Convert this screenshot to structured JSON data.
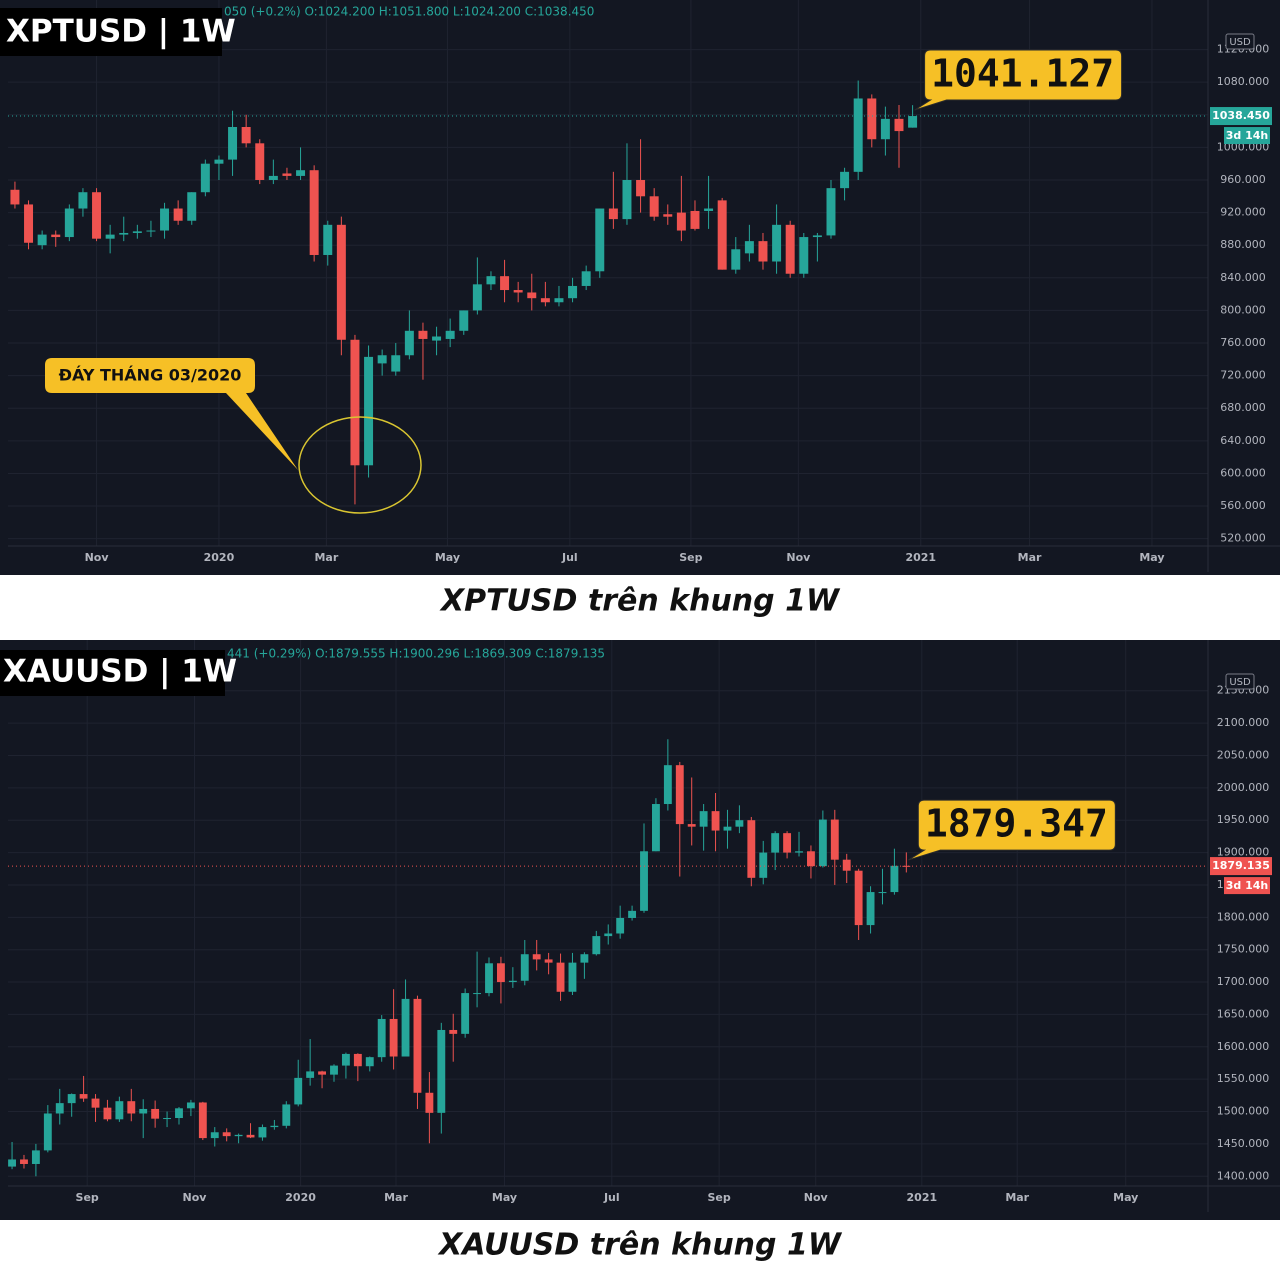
{
  "chart_data": [
    {
      "type": "candlestick",
      "title": "XPTUSD | 1W",
      "header": "050 (+0.2%) O:1024.200 H:1051.800 L:1024.200 C:1038.450",
      "caption": "XPTUSD trên khung 1W",
      "callout": "1041.127",
      "last_price_label": "1038.450",
      "countdown": "3d 14h",
      "annotation": "ĐÁY THÁNG 03/2020",
      "y_unit": "USD",
      "up_color": "#26a69a",
      "down_color": "#ef5350",
      "xlim": [
        -0.51,
        87.72
      ],
      "ylim": [
        511,
        1144
      ],
      "xticks": [
        {
          "value": 6,
          "label": "Nov"
        },
        {
          "value": 15,
          "label": "2020"
        },
        {
          "value": 22.9,
          "label": "Mar"
        },
        {
          "value": 31.8,
          "label": "May"
        },
        {
          "value": 40.8,
          "label": "Jul"
        },
        {
          "value": 49.7,
          "label": "Sep"
        },
        {
          "value": 57.6,
          "label": "Nov"
        },
        {
          "value": 66.6,
          "label": "2021"
        },
        {
          "value": 74.6,
          "label": "Mar"
        },
        {
          "value": 83.6,
          "label": "May"
        }
      ],
      "yticks": [
        {
          "value": 520,
          "label": "520.000"
        },
        {
          "value": 560,
          "label": "560.000"
        },
        {
          "value": 600,
          "label": "600.000"
        },
        {
          "value": 640,
          "label": "640.000"
        },
        {
          "value": 680,
          "label": "680.000"
        },
        {
          "value": 720,
          "label": "720.000"
        },
        {
          "value": 760,
          "label": "760.000"
        },
        {
          "value": 800,
          "label": "800.000"
        },
        {
          "value": 840,
          "label": "840.000"
        },
        {
          "value": 880,
          "label": "880.000"
        },
        {
          "value": 920,
          "label": "920.000"
        },
        {
          "value": 960,
          "label": "960.000"
        },
        {
          "value": 1000,
          "label": "1000.000"
        },
        {
          "value": 1040,
          "label": "1040.000"
        },
        {
          "value": 1080,
          "label": "1080.000"
        },
        {
          "value": 1120,
          "label": "1120.000"
        }
      ],
      "ohlc": [
        [
          948,
          958,
          925,
          930
        ],
        [
          930,
          935,
          875,
          883
        ],
        [
          880,
          898,
          875,
          893
        ],
        [
          893,
          898,
          878,
          890
        ],
        [
          890,
          930,
          885,
          925
        ],
        [
          925,
          950,
          915,
          945
        ],
        [
          945,
          950,
          885,
          888
        ],
        [
          888,
          905,
          870,
          893
        ],
        [
          893,
          915,
          885,
          895
        ],
        [
          895,
          905,
          888,
          897
        ],
        [
          897,
          910,
          890,
          898
        ],
        [
          898,
          932,
          888,
          925
        ],
        [
          925,
          935,
          905,
          910
        ],
        [
          910,
          945,
          905,
          945
        ],
        [
          945,
          985,
          940,
          980
        ],
        [
          980,
          990,
          960,
          985
        ],
        [
          985,
          1045,
          965,
          1025
        ],
        [
          1025,
          1040,
          1000,
          1005
        ],
        [
          1005,
          1010,
          955,
          960
        ],
        [
          960,
          985,
          955,
          965
        ],
        [
          968,
          975,
          960,
          965
        ],
        [
          965,
          1000,
          960,
          972
        ],
        [
          972,
          978,
          860,
          868
        ],
        [
          868,
          910,
          855,
          905
        ],
        [
          905,
          915,
          745,
          764
        ],
        [
          764,
          770,
          562,
          610
        ],
        [
          610,
          757,
          595,
          743
        ],
        [
          735,
          752,
          720,
          745
        ],
        [
          725,
          760,
          720,
          745
        ],
        [
          745,
          800,
          740,
          775
        ],
        [
          775,
          785,
          715,
          765
        ],
        [
          763,
          780,
          745,
          768
        ],
        [
          765,
          790,
          755,
          775
        ],
        [
          775,
          800,
          770,
          800
        ],
        [
          800,
          865,
          795,
          832
        ],
        [
          832,
          848,
          825,
          842
        ],
        [
          842,
          862,
          810,
          825
        ],
        [
          825,
          835,
          810,
          822
        ],
        [
          822,
          845,
          800,
          815
        ],
        [
          815,
          835,
          805,
          810
        ],
        [
          810,
          830,
          805,
          815
        ],
        [
          815,
          840,
          810,
          830
        ],
        [
          830,
          855,
          825,
          848
        ],
        [
          848,
          925,
          840,
          925
        ],
        [
          925,
          970,
          900,
          912
        ],
        [
          912,
          1005,
          905,
          960
        ],
        [
          960,
          1010,
          920,
          940
        ],
        [
          940,
          950,
          910,
          915
        ],
        [
          918,
          930,
          905,
          915
        ],
        [
          920,
          965,
          885,
          898
        ],
        [
          922,
          935,
          898,
          900
        ],
        [
          922,
          965,
          900,
          925
        ],
        [
          935,
          938,
          850,
          850
        ],
        [
          850,
          890,
          845,
          875
        ],
        [
          870,
          905,
          860,
          885
        ],
        [
          885,
          895,
          850,
          860
        ],
        [
          860,
          930,
          845,
          905
        ],
        [
          905,
          910,
          840,
          845
        ],
        [
          845,
          895,
          840,
          890
        ],
        [
          890,
          895,
          860,
          892
        ],
        [
          892,
          960,
          888,
          950
        ],
        [
          950,
          975,
          935,
          970
        ],
        [
          970,
          1082,
          960,
          1060
        ],
        [
          1060,
          1065,
          1000,
          1010
        ],
        [
          1010,
          1050,
          990,
          1035
        ],
        [
          1035,
          1052,
          975,
          1020
        ],
        [
          1024.2,
          1051.8,
          1024.2,
          1038.45
        ]
      ]
    },
    {
      "type": "candlestick",
      "title": "XAUUSD | 1W",
      "header": "441 (+0.29%) O:1879.555 H:1900.296 L:1869.309 C:1879.135",
      "caption": "XAUUSD trên khung 1W",
      "callout": "1879.347",
      "last_price_label": "1879.135",
      "countdown": "3d 14h",
      "y_unit": "USD",
      "up_color": "#26a69a",
      "down_color": "#ef5350",
      "xlim": [
        -0.34,
        100.3
      ],
      "ylim": [
        1385,
        2182
      ],
      "xticks": [
        {
          "value": 6.3,
          "label": "Sep"
        },
        {
          "value": 15.3,
          "label": "Nov"
        },
        {
          "value": 24.2,
          "label": "2020"
        },
        {
          "value": 32.2,
          "label": "Mar"
        },
        {
          "value": 41.3,
          "label": "May"
        },
        {
          "value": 50.3,
          "label": "Jul"
        },
        {
          "value": 59.3,
          "label": "Sep"
        },
        {
          "value": 67.4,
          "label": "Nov"
        },
        {
          "value": 76.3,
          "label": "2021"
        },
        {
          "value": 84.3,
          "label": "Mar"
        },
        {
          "value": 93.4,
          "label": "May"
        }
      ],
      "yticks": [
        {
          "value": 1400,
          "label": "1400.000"
        },
        {
          "value": 1450,
          "label": "1450.000"
        },
        {
          "value": 1500,
          "label": "1500.000"
        },
        {
          "value": 1550,
          "label": "1550.000"
        },
        {
          "value": 1600,
          "label": "1600.000"
        },
        {
          "value": 1650,
          "label": "1650.000"
        },
        {
          "value": 1700,
          "label": "1700.000"
        },
        {
          "value": 1750,
          "label": "1750.000"
        },
        {
          "value": 1800,
          "label": "1800.000"
        },
        {
          "value": 1850,
          "label": "1850.000"
        },
        {
          "value": 1900,
          "label": "1900.000"
        },
        {
          "value": 1950,
          "label": "1950.000"
        },
        {
          "value": 2000,
          "label": "2000.000"
        },
        {
          "value": 2050,
          "label": "2050.000"
        },
        {
          "value": 2100,
          "label": "2100.000"
        },
        {
          "value": 2150,
          "label": "2150.000"
        }
      ],
      "ohlc": [
        [
          1415,
          1453,
          1411,
          1426
        ],
        [
          1426,
          1433,
          1412,
          1419
        ],
        [
          1419,
          1450,
          1400,
          1440
        ],
        [
          1440,
          1510,
          1437,
          1497
        ],
        [
          1497,
          1535,
          1480,
          1513
        ],
        [
          1513,
          1528,
          1492,
          1527
        ],
        [
          1527,
          1555,
          1515,
          1520
        ],
        [
          1520,
          1527,
          1484,
          1506
        ],
        [
          1506,
          1518,
          1485,
          1488
        ],
        [
          1488,
          1523,
          1484,
          1516
        ],
        [
          1516,
          1535,
          1485,
          1497
        ],
        [
          1497,
          1519,
          1459,
          1504
        ],
        [
          1504,
          1517,
          1475,
          1489
        ],
        [
          1489,
          1500,
          1476,
          1490
        ],
        [
          1490,
          1507,
          1480,
          1505
        ],
        [
          1505,
          1518,
          1493,
          1514
        ],
        [
          1514,
          1515,
          1456,
          1459
        ],
        [
          1459,
          1476,
          1446,
          1468
        ],
        [
          1468,
          1474,
          1454,
          1462
        ],
        [
          1462,
          1466,
          1451,
          1464
        ],
        [
          1464,
          1482,
          1459,
          1460
        ],
        [
          1460,
          1480,
          1455,
          1476
        ],
        [
          1476,
          1487,
          1472,
          1478
        ],
        [
          1478,
          1516,
          1474,
          1511
        ],
        [
          1511,
          1580,
          1508,
          1552
        ],
        [
          1552,
          1612,
          1540,
          1562
        ],
        [
          1562,
          1563,
          1536,
          1557
        ],
        [
          1557,
          1573,
          1546,
          1571
        ],
        [
          1571,
          1591,
          1551,
          1589
        ],
        [
          1589,
          1590,
          1547,
          1570
        ],
        [
          1570,
          1585,
          1562,
          1584
        ],
        [
          1584,
          1649,
          1577,
          1643
        ],
        [
          1643,
          1689,
          1565,
          1585
        ],
        [
          1585,
          1704,
          1585,
          1674
        ],
        [
          1674,
          1679,
          1504,
          1529
        ],
        [
          1529,
          1561,
          1451,
          1498
        ],
        [
          1498,
          1637,
          1466,
          1626
        ],
        [
          1626,
          1651,
          1577,
          1620
        ],
        [
          1620,
          1690,
          1614,
          1683
        ],
        [
          1683,
          1747,
          1661,
          1683
        ],
        [
          1683,
          1738,
          1678,
          1729
        ],
        [
          1729,
          1739,
          1667,
          1700
        ],
        [
          1700,
          1723,
          1691,
          1702
        ],
        [
          1702,
          1765,
          1695,
          1743
        ],
        [
          1743,
          1765,
          1718,
          1735
        ],
        [
          1735,
          1745,
          1712,
          1730
        ],
        [
          1730,
          1744,
          1671,
          1685
        ],
        [
          1685,
          1745,
          1680,
          1730
        ],
        [
          1730,
          1746,
          1705,
          1743
        ],
        [
          1743,
          1779,
          1741,
          1771
        ],
        [
          1771,
          1789,
          1758,
          1775
        ],
        [
          1775,
          1818,
          1767,
          1799
        ],
        [
          1799,
          1818,
          1795,
          1810
        ],
        [
          1810,
          1945,
          1807,
          1902
        ],
        [
          1902,
          1984,
          1902,
          1975
        ],
        [
          1975,
          2075,
          1965,
          2035
        ],
        [
          2035,
          2040,
          1863,
          1944
        ],
        [
          1944,
          2016,
          1911,
          1940
        ],
        [
          1940,
          1975,
          1903,
          1964
        ],
        [
          1964,
          1992,
          1902,
          1934
        ],
        [
          1934,
          1966,
          1906,
          1940
        ],
        [
          1940,
          1973,
          1930,
          1950
        ],
        [
          1950,
          1955,
          1848,
          1861
        ],
        [
          1861,
          1918,
          1851,
          1900
        ],
        [
          1900,
          1933,
          1873,
          1930
        ],
        [
          1930,
          1933,
          1891,
          1900
        ],
        [
          1900,
          1932,
          1894,
          1902
        ],
        [
          1902,
          1911,
          1860,
          1879
        ],
        [
          1879,
          1965,
          1877,
          1951
        ],
        [
          1951,
          1966,
          1850,
          1889
        ],
        [
          1889,
          1898,
          1853,
          1872
        ],
        [
          1872,
          1875,
          1765,
          1788
        ],
        [
          1788,
          1848,
          1775,
          1839
        ],
        [
          1839,
          1875,
          1820,
          1839
        ],
        [
          1839,
          1906,
          1835,
          1879.555
        ],
        [
          1879.555,
          1900.296,
          1869.309,
          1879.135
        ]
      ]
    }
  ]
}
